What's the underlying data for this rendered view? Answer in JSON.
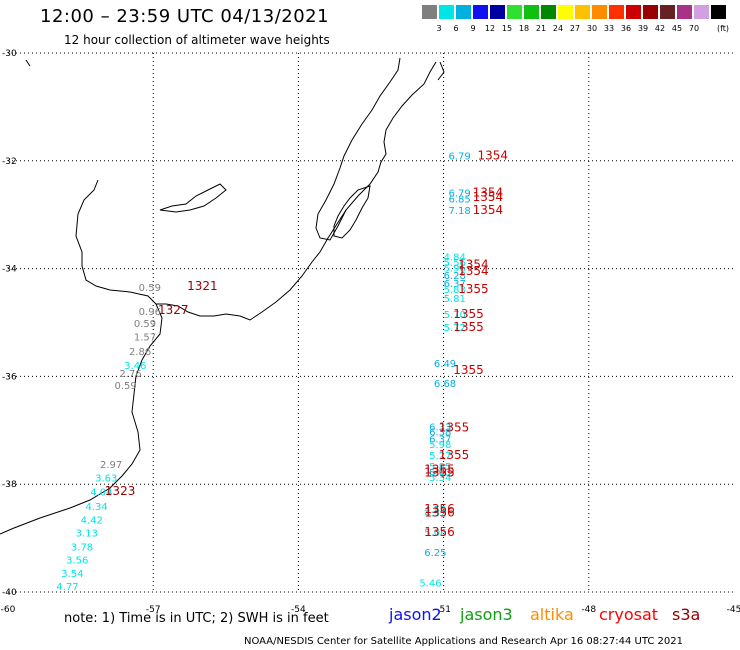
{
  "header": {
    "title": "12:00 – 23:59 UTC 04/13/2021",
    "subtitle": "12 hour collection of altimeter wave heights"
  },
  "color_scale": {
    "colors": [
      "#7f7f7f",
      "#00e5e5",
      "#00b0e0",
      "#1010f0",
      "#0000a0",
      "#30e030",
      "#10c010",
      "#008800",
      "#ffff00",
      "#ffc000",
      "#ff8c00",
      "#ff3000",
      "#cc0000",
      "#990000",
      "#662222",
      "#a83288",
      "#d0a0e0",
      "#000000"
    ],
    "labels": [
      "3",
      "6",
      "9",
      "12",
      "15",
      "18",
      "21",
      "24",
      "27",
      "30",
      "33",
      "36",
      "39",
      "42",
      "45",
      "70"
    ],
    "unit": "(ft)"
  },
  "axes": {
    "lat_labels": [
      "-30",
      "-32",
      "-34",
      "-36",
      "-38",
      "-40"
    ],
    "lon_labels": [
      "-60",
      "-57",
      "-54",
      "-51",
      "-48",
      "-45"
    ]
  },
  "observations": [
    {
      "value": "0.59",
      "color": "#7f7f7f",
      "lon": -57.3,
      "lat": -34.42
    },
    {
      "value": "0.96",
      "color": "#7f7f7f",
      "lon": -57.3,
      "lat": -34.86
    },
    {
      "value": "0.59",
      "color": "#7f7f7f",
      "lon": -57.4,
      "lat": -35.08
    },
    {
      "value": "1.57",
      "color": "#7f7f7f",
      "lon": -57.4,
      "lat": -35.33
    },
    {
      "value": "2.86",
      "color": "#7f7f7f",
      "lon": -57.5,
      "lat": -35.6
    },
    {
      "value": "3.46",
      "color": "#00e5e5",
      "lon": -57.6,
      "lat": -35.86
    },
    {
      "value": "2.76",
      "color": "#7f7f7f",
      "lon": -57.7,
      "lat": -36.01
    },
    {
      "value": "0.59",
      "color": "#7f7f7f",
      "lon": -57.8,
      "lat": -36.23
    },
    {
      "value": "2.97",
      "color": "#7f7f7f",
      "lon": -58.1,
      "lat": -37.7
    },
    {
      "value": "3.63",
      "color": "#00e5e5",
      "lon": -58.2,
      "lat": -37.95
    },
    {
      "value": "4.04",
      "color": "#00e5e5",
      "lon": -58.3,
      "lat": -38.21
    },
    {
      "value": "4.34",
      "color": "#00e5e5",
      "lon": -58.4,
      "lat": -38.48
    },
    {
      "value": "4.42",
      "color": "#00e5e5",
      "lon": -58.5,
      "lat": -38.73
    },
    {
      "value": "3.13",
      "color": "#00e5e5",
      "lon": -58.6,
      "lat": -38.97
    },
    {
      "value": "3.78",
      "color": "#00e5e5",
      "lon": -58.7,
      "lat": -39.23
    },
    {
      "value": "3.56",
      "color": "#00e5e5",
      "lon": -58.8,
      "lat": -39.47
    },
    {
      "value": "3.54",
      "color": "#00e5e5",
      "lon": -58.9,
      "lat": -39.72
    },
    {
      "value": "4.77",
      "color": "#00e5e5",
      "lon": -59.0,
      "lat": -39.96
    },
    {
      "value": "6.79",
      "color": "#00b0e0",
      "lon": -50.9,
      "lat": -31.98
    },
    {
      "value": "6.79",
      "color": "#00b0e0",
      "lon": -50.9,
      "lat": -32.66
    },
    {
      "value": "6.85",
      "color": "#00b0e0",
      "lon": -50.9,
      "lat": -32.77
    },
    {
      "value": "7.18",
      "color": "#00b0e0",
      "lon": -50.9,
      "lat": -32.99
    },
    {
      "value": "4.84",
      "color": "#00e5e5",
      "lon": -51.0,
      "lat": -33.85
    },
    {
      "value": "5.56",
      "color": "#00e5e5",
      "lon": -51.0,
      "lat": -33.95
    },
    {
      "value": "5.96",
      "color": "#00e5e5",
      "lon": -51.0,
      "lat": -34.05
    },
    {
      "value": "6.28",
      "color": "#00b0e0",
      "lon": -51.0,
      "lat": -34.19
    },
    {
      "value": "6.37",
      "color": "#00b0e0",
      "lon": -51.0,
      "lat": -34.34
    },
    {
      "value": "5.83",
      "color": "#00e5e5",
      "lon": -51.0,
      "lat": -34.45
    },
    {
      "value": "5.81",
      "color": "#00e5e5",
      "lon": -51.0,
      "lat": -34.62
    },
    {
      "value": "5.70",
      "color": "#00e5e5",
      "lon": -51.0,
      "lat": -34.92
    },
    {
      "value": "5.72",
      "color": "#00e5e5",
      "lon": -51.0,
      "lat": -35.16
    },
    {
      "value": "6.49",
      "color": "#00b0e0",
      "lon": -51.2,
      "lat": -35.83
    },
    {
      "value": "6.68",
      "color": "#00b0e0",
      "lon": -51.2,
      "lat": -36.2
    },
    {
      "value": "6.33",
      "color": "#00b0e0",
      "lon": -51.3,
      "lat": -37.0
    },
    {
      "value": "6.38",
      "color": "#00b0e0",
      "lon": -51.3,
      "lat": -37.1
    },
    {
      "value": "6.37",
      "color": "#00b0e0",
      "lon": -51.3,
      "lat": -37.23
    },
    {
      "value": "5.98",
      "color": "#00e5e5",
      "lon": -51.3,
      "lat": -37.33
    },
    {
      "value": "5.27",
      "color": "#00e5e5",
      "lon": -51.3,
      "lat": -37.53
    },
    {
      "value": "5.85",
      "color": "#00e5e5",
      "lon": -51.3,
      "lat": -37.74
    },
    {
      "value": "6.03",
      "color": "#00b0e0",
      "lon": -51.3,
      "lat": -37.84
    },
    {
      "value": "5.34",
      "color": "#00e5e5",
      "lon": -51.3,
      "lat": -37.94
    },
    {
      "value": "4.59",
      "color": "#00e5e5",
      "lon": -51.4,
      "lat": -38.53
    },
    {
      "value": "4.52",
      "color": "#00e5e5",
      "lon": -51.4,
      "lat": -38.6
    },
    {
      "value": "5.06",
      "color": "#00e5e5",
      "lon": -51.4,
      "lat": -38.96
    },
    {
      "value": "6.25",
      "color": "#00b0e0",
      "lon": -51.4,
      "lat": -39.33
    },
    {
      "value": "5.46",
      "color": "#00e5e5",
      "lon": -51.5,
      "lat": -39.9
    }
  ],
  "times": [
    {
      "value": "1354",
      "color": "#cc0000",
      "lon": -50.3,
      "lat": -31.98
    },
    {
      "value": "1354",
      "color": "#cc0000",
      "lon": -50.4,
      "lat": -32.66
    },
    {
      "value": "1354",
      "color": "#cc0000",
      "lon": -50.4,
      "lat": -32.75
    },
    {
      "value": "1354",
      "color": "#cc0000",
      "lon": -50.4,
      "lat": -32.99
    },
    {
      "value": "1354",
      "color": "#cc0000",
      "lon": -50.7,
      "lat": -34.0
    },
    {
      "value": "1354",
      "color": "#cc0000",
      "lon": -50.7,
      "lat": -34.12
    },
    {
      "value": "1355",
      "color": "#cc0000",
      "lon": -50.7,
      "lat": -34.45
    },
    {
      "value": "1355",
      "color": "#cc0000",
      "lon": -50.8,
      "lat": -34.92
    },
    {
      "value": "1355",
      "color": "#cc0000",
      "lon": -50.8,
      "lat": -35.16
    },
    {
      "value": "1355",
      "color": "#cc0000",
      "lon": -50.8,
      "lat": -35.96
    },
    {
      "value": "1355",
      "color": "#cc0000",
      "lon": -51.1,
      "lat": -37.02
    },
    {
      "value": "1355",
      "color": "#cc0000",
      "lon": -51.1,
      "lat": -37.53
    },
    {
      "value": "1355",
      "color": "#cc0000",
      "lon": -51.4,
      "lat": -37.8
    },
    {
      "value": "1355",
      "color": "#cc0000",
      "lon": -51.4,
      "lat": -37.86
    },
    {
      "value": "1356",
      "color": "#cc0000",
      "lon": -51.4,
      "lat": -38.53
    },
    {
      "value": "1356",
      "color": "#cc0000",
      "lon": -51.4,
      "lat": -38.6
    },
    {
      "value": "1356",
      "color": "#cc0000",
      "lon": -51.4,
      "lat": -38.96
    },
    {
      "value": "1321",
      "color": "#990000",
      "lon": -56.3,
      "lat": -34.4
    },
    {
      "value": "1327",
      "color": "#990000",
      "lon": -56.9,
      "lat": -34.84
    },
    {
      "value": "1323",
      "color": "#990000",
      "lon": -58.0,
      "lat": -38.2
    }
  ],
  "footer": {
    "note": "note: 1) Time is in UTC; 2) SWH is in feet",
    "credit": "NOAA/NESDIS Center for Satellite Applications and Research    Apr 16 08:27:44 UTC 2021",
    "missions": [
      {
        "label": "jason2",
        "color": "#1010f0"
      },
      {
        "label": "jason3",
        "color": "#10a010"
      },
      {
        "label": "altika",
        "color": "#ff8c00"
      },
      {
        "label": "cryosat",
        "color": "#ff0000"
      },
      {
        "label": "s3a",
        "color": "#990000"
      }
    ]
  }
}
